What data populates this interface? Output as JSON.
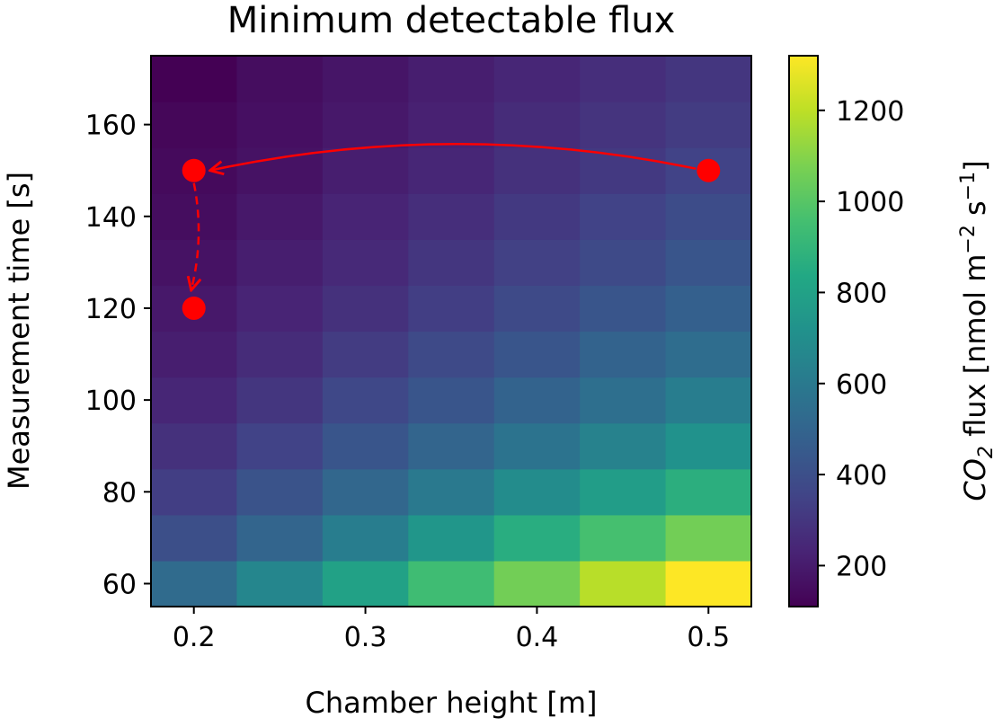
{
  "chart_data": {
    "type": "heatmap",
    "title": "Minimum detectable flux",
    "xlabel": "Chamber height [m]",
    "ylabel": "Measurement time [s]",
    "colorbar_label_parts": [
      "CO",
      "2",
      " flux [nmol m",
      "−2",
      " s",
      "−1",
      "]"
    ],
    "colormap": "viridis",
    "x": [
      0.2,
      0.25,
      0.3,
      0.35,
      0.4,
      0.45,
      0.5
    ],
    "y": [
      60,
      70,
      80,
      90,
      100,
      110,
      120,
      130,
      140,
      150,
      160,
      170
    ],
    "xlim": [
      0.175,
      0.525
    ],
    "ylim": [
      55,
      175
    ],
    "x_ticks": [
      "0.2",
      "0.3",
      "0.4",
      "0.5"
    ],
    "x_tick_values": [
      0.2,
      0.3,
      0.4,
      0.5
    ],
    "y_ticks": [
      "60",
      "80",
      "100",
      "120",
      "140",
      "160"
    ],
    "y_tick_values": [
      60,
      80,
      100,
      120,
      140,
      160
    ],
    "color_range": [
      110,
      1320
    ],
    "colorbar_ticks": [
      "200",
      "400",
      "600",
      "800",
      "1000",
      "1200"
    ],
    "colorbar_tick_values": [
      200,
      400,
      600,
      800,
      1000,
      1200
    ],
    "z": [
      [
        530,
        660,
        800,
        940,
        1060,
        1190,
        1320
      ],
      [
        400,
        500,
        620,
        740,
        860,
        960,
        1060
      ],
      [
        330,
        420,
        510,
        600,
        690,
        780,
        870
      ],
      [
        280,
        350,
        430,
        500,
        570,
        640,
        720
      ],
      [
        240,
        300,
        370,
        430,
        490,
        550,
        620
      ],
      [
        210,
        260,
        320,
        380,
        430,
        490,
        540
      ],
      [
        190,
        230,
        280,
        330,
        380,
        430,
        480
      ],
      [
        170,
        210,
        250,
        300,
        340,
        380,
        430
      ],
      [
        150,
        190,
        230,
        270,
        310,
        350,
        390
      ],
      [
        140,
        170,
        210,
        240,
        280,
        310,
        350
      ],
      [
        130,
        160,
        190,
        220,
        260,
        290,
        320
      ],
      [
        110,
        150,
        180,
        210,
        240,
        270,
        300
      ]
    ],
    "points": [
      {
        "x": 0.5,
        "y": 150
      },
      {
        "x": 0.2,
        "y": 150
      },
      {
        "x": 0.2,
        "y": 120
      }
    ],
    "arrows": [
      {
        "from": [
          0.5,
          150
        ],
        "to": [
          0.2,
          150
        ],
        "style": "solid",
        "curved": true
      },
      {
        "from": [
          0.2,
          150
        ],
        "to": [
          0.2,
          120
        ],
        "style": "dashed",
        "curved": true
      }
    ],
    "marker_color": "#ff0000"
  }
}
